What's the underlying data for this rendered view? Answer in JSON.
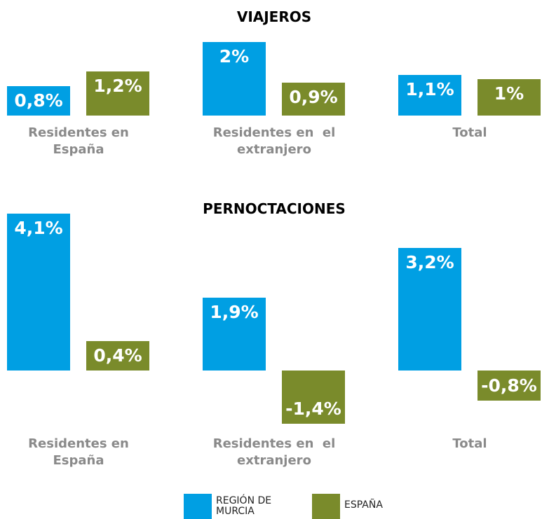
{
  "chart_data": [
    {
      "type": "bar",
      "title": "VIAJEROS",
      "categories": [
        "Residentes en España",
        "Residentes en  el extranjero",
        "Total"
      ],
      "series": [
        {
          "name": "REGIÓN DE MURCIA",
          "color": "#009fe3",
          "values": [
            0.8,
            2,
            1.1
          ],
          "value_labels": [
            "0,8%",
            "2%",
            "1,1%"
          ]
        },
        {
          "name": "ESPAÑA",
          "color": "#7a8b2b",
          "values": [
            1.2,
            0.9,
            1
          ],
          "value_labels": [
            "1,2%",
            "0,9%",
            "1%"
          ]
        }
      ],
      "ylim": [
        0,
        2
      ]
    },
    {
      "type": "bar",
      "title": "PERNOCTACIONES",
      "categories": [
        "Residentes en España",
        "Residentes en  el extranjero",
        "Total"
      ],
      "series": [
        {
          "color": "#009fe3",
          "values": [
            4.1,
            1.9,
            3.2
          ],
          "value_labels": [
            "4,1%",
            "1,9%",
            "3,2%"
          ]
        },
        {
          "color": "#7a8b2b",
          "values": [
            0.4,
            -1.4,
            -0.8
          ],
          "value_labels": [
            "0,4%",
            "-1,4%",
            "-0,8%"
          ]
        }
      ],
      "ylim": [
        -1.4,
        4.1
      ]
    }
  ]
}
